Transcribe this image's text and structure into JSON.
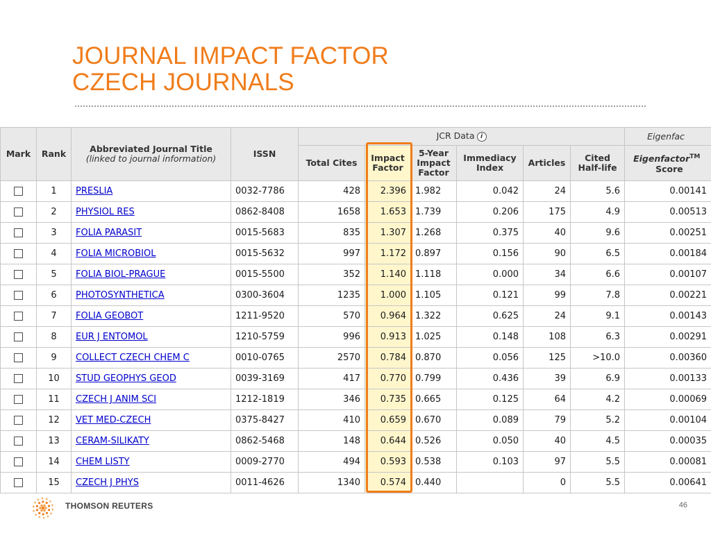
{
  "slide": {
    "title_line1": "JOURNAL IMPACT FACTOR",
    "title_line2": "CZECH JOURNALS",
    "page_number": "46",
    "brand": "THOMSON REUTERS"
  },
  "colors": {
    "accent": "#f07c1a",
    "link": "#0000cc",
    "highlight_fill": "#fff6cc"
  },
  "table": {
    "headers": {
      "mark": "Mark",
      "rank": "Rank",
      "title": "Abbreviated Journal Title",
      "title_sub": "(linked to journal information)",
      "issn": "ISSN",
      "jcr_group": "JCR Data",
      "eigen_group": "Eigenfac",
      "total_cites": "Total Cites",
      "impact_factor_1": "Impact",
      "impact_factor_2": "Factor",
      "five_year_1": "5-Year",
      "five_year_2": "Impact",
      "five_year_3": "Factor",
      "immediacy_1": "Immediacy",
      "immediacy_2": "Index",
      "articles": "Articles",
      "cited_1": "Cited",
      "cited_2": "Half-life",
      "eigen_1": "Eigenfactor",
      "eigen_tm": "TM",
      "eigen_2": "Score",
      "info_icon": "i"
    },
    "rows": [
      {
        "rank": "1",
        "title": "PRESLIA",
        "issn": "0032-7786",
        "total_cites": "428",
        "impact_factor": "2.396",
        "five_year": "1.982",
        "immediacy": "0.042",
        "articles": "24",
        "half_life": "5.6",
        "eigenfactor": "0.00141"
      },
      {
        "rank": "2",
        "title": "PHYSIOL RES",
        "issn": "0862-8408",
        "total_cites": "1658",
        "impact_factor": "1.653",
        "five_year": "1.739",
        "immediacy": "0.206",
        "articles": "175",
        "half_life": "4.9",
        "eigenfactor": "0.00513"
      },
      {
        "rank": "3",
        "title": "FOLIA PARASIT",
        "issn": "0015-5683",
        "total_cites": "835",
        "impact_factor": "1.307",
        "five_year": "1.268",
        "immediacy": "0.375",
        "articles": "40",
        "half_life": "9.6",
        "eigenfactor": "0.00251"
      },
      {
        "rank": "4",
        "title": "FOLIA MICROBIOL",
        "issn": "0015-5632",
        "total_cites": "997",
        "impact_factor": "1.172",
        "five_year": "0.897",
        "immediacy": "0.156",
        "articles": "90",
        "half_life": "6.5",
        "eigenfactor": "0.00184"
      },
      {
        "rank": "5",
        "title": "FOLIA BIOL-PRAGUE",
        "issn": "0015-5500",
        "total_cites": "352",
        "impact_factor": "1.140",
        "five_year": "1.118",
        "immediacy": "0.000",
        "articles": "34",
        "half_life": "6.6",
        "eigenfactor": "0.00107"
      },
      {
        "rank": "6",
        "title": "PHOTOSYNTHETICA",
        "issn": "0300-3604",
        "total_cites": "1235",
        "impact_factor": "1.000",
        "five_year": "1.105",
        "immediacy": "0.121",
        "articles": "99",
        "half_life": "7.8",
        "eigenfactor": "0.00221"
      },
      {
        "rank": "7",
        "title": "FOLIA GEOBOT",
        "issn": "1211-9520",
        "total_cites": "570",
        "impact_factor": "0.964",
        "five_year": "1.322",
        "immediacy": "0.625",
        "articles": "24",
        "half_life": "9.1",
        "eigenfactor": "0.00143"
      },
      {
        "rank": "8",
        "title": "EUR J ENTOMOL",
        "issn": "1210-5759",
        "total_cites": "996",
        "impact_factor": "0.913",
        "five_year": "1.025",
        "immediacy": "0.148",
        "articles": "108",
        "half_life": "6.3",
        "eigenfactor": "0.00291"
      },
      {
        "rank": "9",
        "title": "COLLECT CZECH CHEM C",
        "issn": "0010-0765",
        "total_cites": "2570",
        "impact_factor": "0.784",
        "five_year": "0.870",
        "immediacy": "0.056",
        "articles": "125",
        "half_life": ">10.0",
        "eigenfactor": "0.00360"
      },
      {
        "rank": "10",
        "title": "STUD GEOPHYS GEOD",
        "issn": "0039-3169",
        "total_cites": "417",
        "impact_factor": "0.770",
        "five_year": "0.799",
        "immediacy": "0.436",
        "articles": "39",
        "half_life": "6.9",
        "eigenfactor": "0.00133"
      },
      {
        "rank": "11",
        "title": "CZECH J ANIM SCI",
        "issn": "1212-1819",
        "total_cites": "346",
        "impact_factor": "0.735",
        "five_year": "0.665",
        "immediacy": "0.125",
        "articles": "64",
        "half_life": "4.2",
        "eigenfactor": "0.00069"
      },
      {
        "rank": "12",
        "title": "VET MED-CZECH",
        "issn": "0375-8427",
        "total_cites": "410",
        "impact_factor": "0.659",
        "five_year": "0.670",
        "immediacy": "0.089",
        "articles": "79",
        "half_life": "5.2",
        "eigenfactor": "0.00104"
      },
      {
        "rank": "13",
        "title": "CERAM-SILIKATY",
        "issn": "0862-5468",
        "total_cites": "148",
        "impact_factor": "0.644",
        "five_year": "0.526",
        "immediacy": "0.050",
        "articles": "40",
        "half_life": "4.5",
        "eigenfactor": "0.00035"
      },
      {
        "rank": "14",
        "title": "CHEM LISTY",
        "issn": "0009-2770",
        "total_cites": "494",
        "impact_factor": "0.593",
        "five_year": "0.538",
        "immediacy": "0.103",
        "articles": "97",
        "half_life": "5.5",
        "eigenfactor": "0.00081"
      },
      {
        "rank": "15",
        "title": "CZECH J PHYS",
        "issn": "0011-4626",
        "total_cites": "1340",
        "impact_factor": "0.574",
        "five_year": "0.440",
        "immediacy": "",
        "articles": "0",
        "half_life": "5.5",
        "eigenfactor": "0.00641"
      }
    ]
  }
}
